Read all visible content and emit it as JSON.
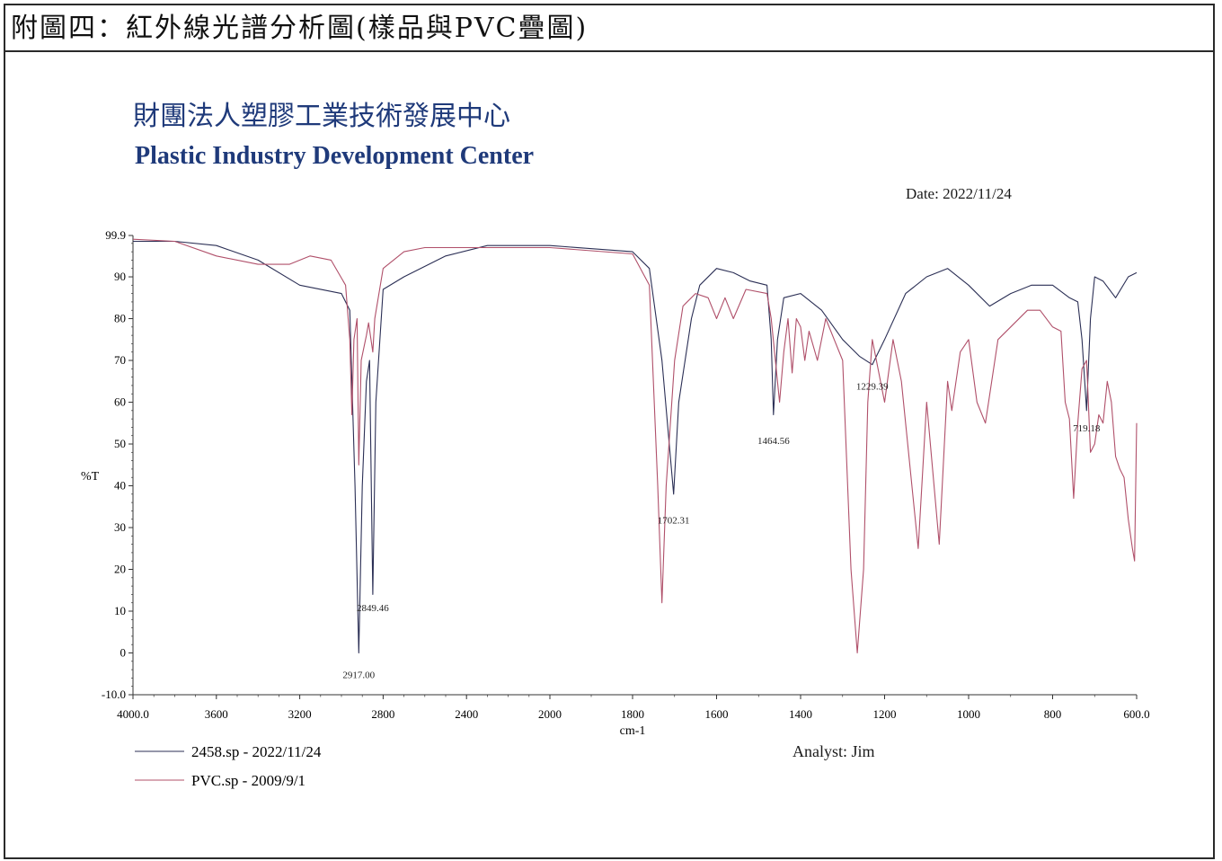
{
  "figure_caption": "附圖四：紅外線光譜分析圖(樣品與PVC疊圖)",
  "org_name_cn": "財團法人塑膠工業技術發展中心",
  "org_name_en": "Plastic Industry Development Center",
  "date_text": "Date: 2022/11/24",
  "analyst_text": "Analyst: Jim",
  "colors": {
    "sample": "#2b2f55",
    "pvc": "#b0506a",
    "axis": "#333333"
  },
  "chart_data": {
    "type": "line",
    "xlabel": "cm-1",
    "ylabel": "%T",
    "xlim": [
      4000.0,
      600.0
    ],
    "ylim": [
      -10.0,
      99.9
    ],
    "x_ticks": [
      "4000.0",
      "3600",
      "3200",
      "2800",
      "2400",
      "2000",
      "1600",
      "1400",
      "1200",
      "1000",
      "800",
      "600.0"
    ],
    "x_tick_values": [
      4000,
      3600,
      3200,
      2800,
      2400,
      2000,
      1600,
      1400,
      1200,
      1000,
      800,
      600
    ],
    "x_tick_1800_label": "1800",
    "y_ticks": [
      "99.9",
      "90",
      "80",
      "70",
      "60",
      "50",
      "40",
      "30",
      "20",
      "10",
      "0",
      "-10.0"
    ],
    "y_tick_values": [
      99.9,
      90,
      80,
      70,
      60,
      50,
      40,
      30,
      20,
      10,
      0,
      -10
    ],
    "legend_position": "bottom-left",
    "series": [
      {
        "name": "2458.sp - 2022/11/24",
        "color": "#2b2f55",
        "points": [
          [
            4000,
            98.5
          ],
          [
            3800,
            98.5
          ],
          [
            3600,
            97.5
          ],
          [
            3400,
            94
          ],
          [
            3200,
            88
          ],
          [
            3000,
            86
          ],
          [
            2960,
            82
          ],
          [
            2935,
            40
          ],
          [
            2917,
            0
          ],
          [
            2900,
            40
          ],
          [
            2880,
            65
          ],
          [
            2865,
            70
          ],
          [
            2849.46,
            14
          ],
          [
            2835,
            60
          ],
          [
            2800,
            87
          ],
          [
            2700,
            90
          ],
          [
            2500,
            95
          ],
          [
            2300,
            97.5
          ],
          [
            2000,
            97.5
          ],
          [
            1800,
            96
          ],
          [
            1760,
            92
          ],
          [
            1730,
            70
          ],
          [
            1702.31,
            38
          ],
          [
            1690,
            60
          ],
          [
            1660,
            80
          ],
          [
            1640,
            88
          ],
          [
            1600,
            92
          ],
          [
            1560,
            91
          ],
          [
            1520,
            89
          ],
          [
            1480,
            88
          ],
          [
            1470,
            75
          ],
          [
            1464.56,
            57
          ],
          [
            1455,
            75
          ],
          [
            1440,
            85
          ],
          [
            1400,
            86
          ],
          [
            1350,
            82
          ],
          [
            1300,
            75
          ],
          [
            1260,
            71
          ],
          [
            1229.39,
            69
          ],
          [
            1200,
            75
          ],
          [
            1150,
            86
          ],
          [
            1100,
            90
          ],
          [
            1050,
            92
          ],
          [
            1000,
            88
          ],
          [
            950,
            83
          ],
          [
            900,
            86
          ],
          [
            850,
            88
          ],
          [
            800,
            88
          ],
          [
            760,
            85
          ],
          [
            740,
            84
          ],
          [
            730,
            75
          ],
          [
            719.18,
            58
          ],
          [
            710,
            80
          ],
          [
            700,
            90
          ],
          [
            680,
            89
          ],
          [
            650,
            85
          ],
          [
            620,
            90
          ],
          [
            600,
            91
          ]
        ]
      },
      {
        "name": "PVC.sp - 2009/9/1",
        "color": "#b0506a",
        "points": [
          [
            4000,
            99
          ],
          [
            3800,
            98.5
          ],
          [
            3600,
            95
          ],
          [
            3400,
            93
          ],
          [
            3250,
            93
          ],
          [
            3150,
            95
          ],
          [
            3050,
            94
          ],
          [
            2980,
            88
          ],
          [
            2960,
            75
          ],
          [
            2950,
            57
          ],
          [
            2940,
            75
          ],
          [
            2925,
            80
          ],
          [
            2917,
            45
          ],
          [
            2905,
            70
          ],
          [
            2880,
            76
          ],
          [
            2870,
            79
          ],
          [
            2849.46,
            72
          ],
          [
            2840,
            80
          ],
          [
            2800,
            92
          ],
          [
            2700,
            96
          ],
          [
            2600,
            97
          ],
          [
            2400,
            97
          ],
          [
            2000,
            97
          ],
          [
            1800,
            95.5
          ],
          [
            1760,
            88
          ],
          [
            1740,
            40
          ],
          [
            1730,
            12
          ],
          [
            1720,
            40
          ],
          [
            1700,
            70
          ],
          [
            1680,
            83
          ],
          [
            1650,
            86
          ],
          [
            1620,
            85
          ],
          [
            1600,
            80
          ],
          [
            1580,
            85
          ],
          [
            1560,
            80
          ],
          [
            1530,
            87
          ],
          [
            1480,
            86
          ],
          [
            1470,
            80
          ],
          [
            1450,
            60
          ],
          [
            1440,
            72
          ],
          [
            1430,
            80
          ],
          [
            1420,
            67
          ],
          [
            1410,
            80
          ],
          [
            1400,
            78
          ],
          [
            1390,
            70
          ],
          [
            1380,
            77
          ],
          [
            1360,
            70
          ],
          [
            1340,
            80
          ],
          [
            1320,
            75
          ],
          [
            1300,
            70
          ],
          [
            1280,
            20
          ],
          [
            1265,
            0
          ],
          [
            1250,
            20
          ],
          [
            1240,
            60
          ],
          [
            1229.39,
            75
          ],
          [
            1200,
            60
          ],
          [
            1180,
            75
          ],
          [
            1160,
            65
          ],
          [
            1120,
            25
          ],
          [
            1100,
            60
          ],
          [
            1070,
            26
          ],
          [
            1050,
            65
          ],
          [
            1040,
            58
          ],
          [
            1020,
            72
          ],
          [
            1000,
            75
          ],
          [
            980,
            60
          ],
          [
            960,
            55
          ],
          [
            930,
            75
          ],
          [
            900,
            78
          ],
          [
            860,
            82
          ],
          [
            830,
            82
          ],
          [
            800,
            78
          ],
          [
            780,
            77
          ],
          [
            770,
            60
          ],
          [
            760,
            56
          ],
          [
            750,
            37
          ],
          [
            740,
            55
          ],
          [
            730,
            68
          ],
          [
            719.18,
            70
          ],
          [
            710,
            48
          ],
          [
            700,
            50
          ],
          [
            690,
            57
          ],
          [
            680,
            55
          ],
          [
            670,
            65
          ],
          [
            660,
            60
          ],
          [
            650,
            47
          ],
          [
            640,
            44
          ],
          [
            630,
            42
          ],
          [
            620,
            32
          ],
          [
            610,
            25
          ],
          [
            605,
            22
          ],
          [
            600,
            55
          ]
        ]
      }
    ],
    "peak_labels": [
      {
        "text": "2917.00",
        "x": 2917.0,
        "y": -6
      },
      {
        "text": "2849.46",
        "x": 2849.46,
        "y": 10
      },
      {
        "text": "1702.31",
        "x": 1702.31,
        "y": 31
      },
      {
        "text": "1464.56",
        "x": 1464.56,
        "y": 50
      },
      {
        "text": "1229.39",
        "x": 1229.39,
        "y": 63
      },
      {
        "text": "719.18",
        "x": 719.18,
        "y": 53
      }
    ]
  }
}
